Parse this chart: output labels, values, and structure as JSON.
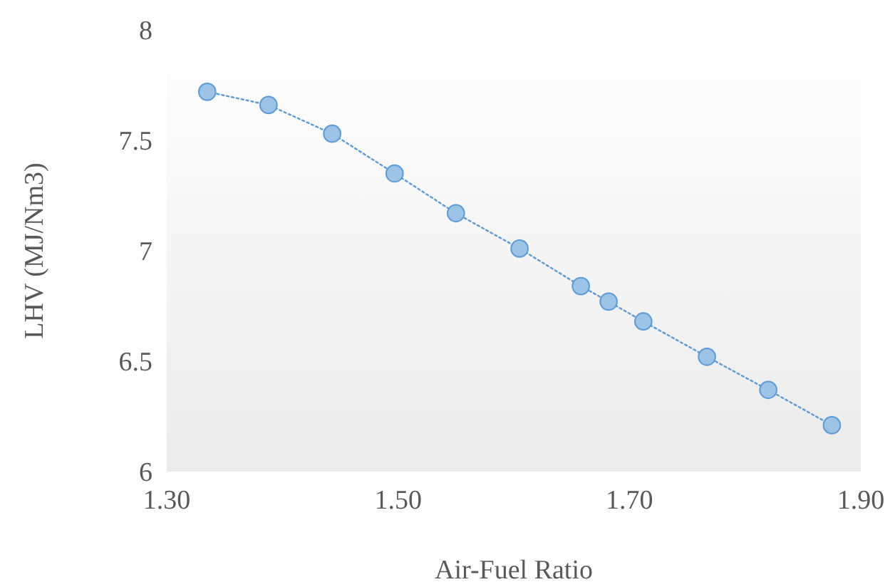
{
  "chart_data": {
    "type": "line",
    "xlabel": "Air-Fuel Ratio",
    "ylabel": "LHV (MJ/Nm3)",
    "x": [
      1.335,
      1.388,
      1.443,
      1.497,
      1.55,
      1.605,
      1.658,
      1.682,
      1.712,
      1.767,
      1.82,
      1.875
    ],
    "series": [
      {
        "color": "#9dc3e6",
        "values": [
          7.72,
          7.66,
          7.53,
          7.35,
          7.17,
          7.01,
          6.84,
          6.77,
          6.68,
          6.52,
          6.37,
          6.21
        ]
      }
    ],
    "xlim": [
      1.3,
      1.9
    ],
    "xticks": [
      {
        "value": 1.3,
        "label": "1.30"
      },
      {
        "value": 1.5,
        "label": "1.50"
      },
      {
        "value": 1.7,
        "label": "1.70"
      },
      {
        "value": 1.9,
        "label": "1.90"
      }
    ],
    "ylim": [
      6,
      8
    ],
    "yticks": [
      6,
      6.5,
      7,
      7.5,
      8
    ],
    "grid": false,
    "marker": "circle",
    "line_style": "dotted"
  }
}
